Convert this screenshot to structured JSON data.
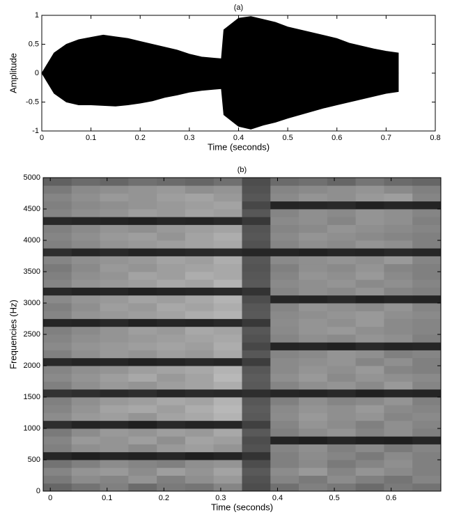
{
  "chart_data": [
    {
      "type": "area",
      "title": "(a)",
      "x_label": "Time (seconds)",
      "y_label": "Amplitude",
      "x": [
        0,
        0.025,
        0.05,
        0.075,
        0.1,
        0.125,
        0.15,
        0.175,
        0.2,
        0.225,
        0.25,
        0.275,
        0.3,
        0.325,
        0.35,
        0.365,
        0.37,
        0.4,
        0.425,
        0.45,
        0.475,
        0.5,
        0.525,
        0.55,
        0.575,
        0.6,
        0.625,
        0.65,
        0.675,
        0.7,
        0.725
      ],
      "series": [
        {
          "color": "#000000",
          "values": [
            0,
            0.35,
            0.5,
            0.58,
            0.62,
            0.66,
            0.63,
            0.6,
            0.55,
            0.5,
            0.45,
            0.4,
            0.33,
            0.28,
            0.26,
            0.25,
            0.75,
            0.95,
            0.98,
            0.93,
            0.88,
            0.8,
            0.75,
            0.7,
            0.65,
            0.6,
            0.52,
            0.47,
            0.42,
            0.38,
            0.35
          ]
        },
        {
          "color": "#000000",
          "values": [
            0,
            -0.35,
            -0.5,
            -0.55,
            -0.55,
            -0.56,
            -0.57,
            -0.55,
            -0.52,
            -0.48,
            -0.42,
            -0.38,
            -0.33,
            -0.3,
            -0.28,
            -0.27,
            -0.72,
            -0.92,
            -0.97,
            -0.9,
            -0.85,
            -0.78,
            -0.72,
            -0.66,
            -0.6,
            -0.55,
            -0.5,
            -0.45,
            -0.4,
            -0.35,
            -0.32
          ]
        }
      ],
      "xlim": [
        0,
        0.8
      ],
      "xticks": [
        0,
        0.1,
        0.2,
        0.3,
        0.4,
        0.5,
        0.6,
        0.7,
        0.8
      ],
      "ylim": [
        -1,
        1
      ],
      "yticks": [
        -1,
        -0.5,
        0,
        0.5,
        1
      ]
    },
    {
      "type": "heatmap",
      "title": "(b)",
      "x_label": "Time (seconds)",
      "y_label": "Frequencies (Hz)",
      "xbins": [
        -0.0125,
        0.0375,
        0.0875,
        0.1375,
        0.1875,
        0.2375,
        0.2875,
        0.3375,
        0.3875,
        0.4375,
        0.4875,
        0.5375,
        0.5875,
        0.6375,
        0.6875
      ],
      "ybins": [
        0,
        125,
        250,
        375,
        500,
        625,
        750,
        875,
        1000,
        1125,
        1250,
        1375,
        1500,
        1625,
        1750,
        1875,
        2000,
        2125,
        2250,
        2375,
        2500,
        2625,
        2750,
        2875,
        3000,
        3125,
        3250,
        3375,
        3500,
        3625,
        3750,
        3875,
        4000,
        4125,
        4250,
        4375,
        4500,
        4625,
        4750,
        4875,
        5000
      ],
      "colormap": [
        "#000000",
        "#ffffff"
      ],
      "zlim": [
        0,
        100
      ],
      "z": [
        [
          40,
          45,
          50,
          42,
          48,
          46,
          52,
          30,
          44,
          50,
          47,
          42,
          48,
          45
        ],
        [
          48,
          55,
          52,
          58,
          50,
          56,
          60,
          32,
          52,
          48,
          55,
          50,
          46,
          52
        ],
        [
          52,
          58,
          60,
          55,
          62,
          58,
          64,
          35,
          55,
          60,
          52,
          58,
          54,
          50
        ],
        [
          45,
          50,
          55,
          52,
          50,
          56,
          58,
          30,
          50,
          54,
          48,
          52,
          56,
          50
        ],
        [
          15,
          12,
          14,
          13,
          15,
          12,
          14,
          20,
          50,
          55,
          52,
          48,
          54,
          50
        ],
        [
          50,
          56,
          58,
          54,
          60,
          62,
          58,
          32,
          52,
          56,
          50,
          54,
          48,
          52
        ],
        [
          52,
          60,
          58,
          62,
          56,
          64,
          62,
          30,
          14,
          12,
          15,
          13,
          12,
          15
        ],
        [
          48,
          55,
          60,
          58,
          62,
          60,
          66,
          35,
          50,
          55,
          58,
          52,
          56,
          50
        ],
        [
          18,
          14,
          15,
          12,
          16,
          14,
          15,
          25,
          52,
          58,
          55,
          50,
          56,
          52
        ],
        [
          55,
          60,
          62,
          58,
          64,
          66,
          70,
          35,
          55,
          60,
          56,
          58,
          52,
          54
        ],
        [
          52,
          58,
          64,
          66,
          62,
          68,
          72,
          36,
          54,
          58,
          56,
          60,
          54,
          52
        ],
        [
          50,
          56,
          60,
          62,
          66,
          64,
          70,
          34,
          50,
          56,
          52,
          54,
          58,
          50
        ],
        [
          20,
          18,
          16,
          18,
          15,
          17,
          16,
          18,
          15,
          14,
          16,
          13,
          15,
          14
        ],
        [
          50,
          56,
          60,
          58,
          62,
          64,
          68,
          35,
          52,
          56,
          58,
          54,
          60,
          52
        ],
        [
          54,
          58,
          62,
          66,
          60,
          64,
          72,
          36,
          56,
          60,
          54,
          58,
          56,
          54
        ],
        [
          52,
          56,
          58,
          62,
          64,
          66,
          70,
          34,
          54,
          58,
          56,
          60,
          52,
          50
        ],
        [
          16,
          14,
          15,
          13,
          14,
          16,
          15,
          24,
          54,
          56,
          58,
          52,
          56,
          50
        ],
        [
          50,
          56,
          60,
          58,
          62,
          60,
          66,
          34,
          52,
          54,
          58,
          56,
          50,
          52
        ],
        [
          54,
          58,
          60,
          62,
          64,
          62,
          68,
          28,
          14,
          15,
          13,
          16,
          14,
          15
        ],
        [
          52,
          56,
          58,
          60,
          62,
          64,
          66,
          32,
          52,
          56,
          54,
          58,
          56,
          50
        ],
        [
          50,
          54,
          58,
          62,
          60,
          66,
          64,
          34,
          54,
          58,
          60,
          56,
          54,
          52
        ],
        [
          15,
          14,
          16,
          13,
          15,
          14,
          16,
          22,
          55,
          58,
          56,
          60,
          54,
          52
        ],
        [
          52,
          58,
          60,
          62,
          64,
          68,
          70,
          35,
          54,
          56,
          58,
          60,
          56,
          54
        ],
        [
          50,
          56,
          62,
          60,
          66,
          64,
          68,
          34,
          52,
          58,
          56,
          54,
          58,
          52
        ],
        [
          54,
          58,
          60,
          64,
          62,
          66,
          70,
          30,
          15,
          14,
          16,
          13,
          15,
          14
        ],
        [
          16,
          14,
          15,
          13,
          14,
          15,
          16,
          20,
          52,
          56,
          54,
          58,
          52,
          50
        ],
        [
          52,
          58,
          60,
          62,
          66,
          64,
          70,
          35,
          54,
          56,
          58,
          54,
          56,
          52
        ],
        [
          50,
          56,
          58,
          64,
          62,
          68,
          66,
          34,
          52,
          58,
          56,
          60,
          54,
          50
        ],
        [
          48,
          54,
          60,
          58,
          62,
          64,
          66,
          33,
          50,
          56,
          54,
          58,
          52,
          50
        ],
        [
          52,
          56,
          58,
          60,
          64,
          62,
          68,
          34,
          54,
          56,
          58,
          56,
          60,
          52
        ],
        [
          18,
          15,
          16,
          14,
          15,
          16,
          17,
          15,
          14,
          13,
          15,
          14,
          16,
          15
        ],
        [
          50,
          54,
          58,
          60,
          62,
          64,
          66,
          32,
          52,
          56,
          54,
          58,
          56,
          50
        ],
        [
          52,
          56,
          60,
          62,
          58,
          64,
          68,
          34,
          54,
          58,
          56,
          54,
          52,
          50
        ],
        [
          50,
          54,
          58,
          56,
          60,
          62,
          64,
          33,
          52,
          54,
          58,
          56,
          54,
          52
        ],
        [
          16,
          15,
          14,
          13,
          15,
          14,
          16,
          22,
          54,
          56,
          52,
          58,
          56,
          50
        ],
        [
          52,
          56,
          58,
          62,
          60,
          64,
          62,
          34,
          52,
          56,
          54,
          58,
          56,
          52
        ],
        [
          50,
          54,
          56,
          58,
          60,
          62,
          64,
          28,
          14,
          15,
          16,
          13,
          15,
          14
        ],
        [
          52,
          56,
          60,
          58,
          62,
          64,
          60,
          34,
          54,
          58,
          56,
          60,
          62,
          52
        ],
        [
          48,
          54,
          56,
          58,
          60,
          56,
          58,
          32,
          52,
          54,
          56,
          58,
          54,
          50
        ],
        [
          38,
          42,
          40,
          44,
          42,
          40,
          44,
          30,
          42,
          44,
          40,
          46,
          42,
          40
        ]
      ],
      "xlim": [
        -0.0125,
        0.6875
      ],
      "xticks": [
        0,
        0.1,
        0.2,
        0.3,
        0.4,
        0.5,
        0.6
      ],
      "ylim": [
        0,
        5000
      ],
      "yticks": [
        0,
        500,
        1000,
        1500,
        2000,
        2500,
        3000,
        3500,
        4000,
        4500,
        5000
      ]
    }
  ]
}
